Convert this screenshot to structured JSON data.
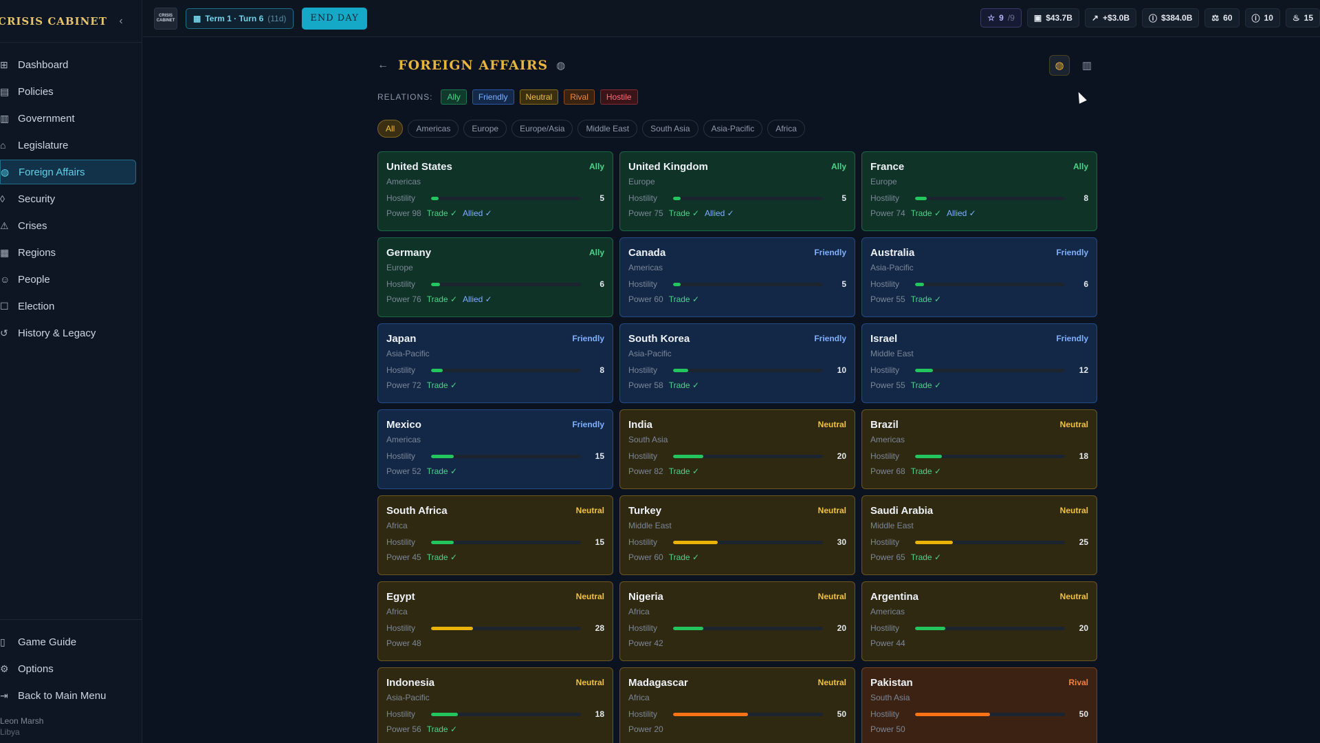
{
  "app": {
    "title": "CRISIS CABINET",
    "logo_text": "CRISIS CABINET"
  },
  "sidebar": {
    "items": [
      {
        "label": "Dashboard",
        "icon": "grid-icon",
        "glyph": "⊞",
        "active": false
      },
      {
        "label": "Policies",
        "icon": "document-icon",
        "glyph": "▤",
        "active": false
      },
      {
        "label": "Government",
        "icon": "building-icon",
        "glyph": "▥",
        "active": false
      },
      {
        "label": "Legislature",
        "icon": "landmark-icon",
        "glyph": "⌂",
        "active": false
      },
      {
        "label": "Foreign Affairs",
        "icon": "globe-icon",
        "glyph": "◍",
        "active": true
      },
      {
        "label": "Security",
        "icon": "shield-icon",
        "glyph": "◊",
        "active": false
      },
      {
        "label": "Crises",
        "icon": "warning-icon",
        "glyph": "⚠",
        "active": false
      },
      {
        "label": "Regions",
        "icon": "map-icon",
        "glyph": "▦",
        "active": false
      },
      {
        "label": "People",
        "icon": "users-icon",
        "glyph": "☺",
        "active": false
      },
      {
        "label": "Election",
        "icon": "ballot-icon",
        "glyph": "☐",
        "active": false
      },
      {
        "label": "History & Legacy",
        "icon": "history-icon",
        "glyph": "↺",
        "active": false
      }
    ],
    "bottom": [
      {
        "label": "Game Guide",
        "icon": "book-icon",
        "glyph": "▯"
      },
      {
        "label": "Options",
        "icon": "gear-icon",
        "glyph": "⚙"
      },
      {
        "label": "Back to Main Menu",
        "icon": "exit-icon",
        "glyph": "⇥"
      }
    ],
    "user": {
      "name": "Leon Marsh",
      "country": "Libya"
    }
  },
  "topbar": {
    "term": "Term 1 · Turn 6",
    "days": "(11d)",
    "end_day": "END DAY",
    "stats": [
      {
        "icon": "star-icon",
        "glyph": "☆",
        "value": "9",
        "extra": "/9",
        "kind": "star"
      },
      {
        "icon": "wallet-icon",
        "glyph": "▣",
        "value": "$43.7B",
        "extra": "",
        "kind": ""
      },
      {
        "icon": "trending-up-icon",
        "glyph": "↗",
        "value": "+$3.0B",
        "extra": "",
        "kind": ""
      },
      {
        "icon": "debt-icon",
        "glyph": "ⓘ",
        "value": "$384.0B",
        "extra": "",
        "kind": ""
      },
      {
        "icon": "scale-icon",
        "glyph": "⚖",
        "value": "60",
        "extra": "",
        "kind": ""
      },
      {
        "icon": "alert-icon",
        "glyph": "ⓘ",
        "value": "10",
        "extra": "",
        "kind": ""
      },
      {
        "icon": "flame-icon",
        "glyph": "♨",
        "value": "15",
        "extra": "",
        "kind": ""
      }
    ]
  },
  "page": {
    "title": "FOREIGN AFFAIRS",
    "relations_label": "RELATIONS:",
    "relations": [
      {
        "label": "Ally",
        "kind": "ally"
      },
      {
        "label": "Friendly",
        "kind": "friendly"
      },
      {
        "label": "Neutral",
        "kind": "neutral"
      },
      {
        "label": "Rival",
        "kind": "rival"
      },
      {
        "label": "Hostile",
        "kind": "hostile"
      }
    ],
    "regions": [
      "All",
      "Americas",
      "Europe",
      "Europe/Asia",
      "Middle East",
      "South Asia",
      "Asia-Pacific",
      "Africa"
    ],
    "active_region": "All",
    "hostility_label": "Hostility",
    "power_prefix": "Power",
    "trade_label": "Trade ✓",
    "allied_label": "Allied ✓"
  },
  "colors": {
    "ally": "#4ad58a",
    "friendly": "#7fb0ff",
    "neutral": "#f2c23d",
    "rival": "#f2833d",
    "bar_low": "#22c55e",
    "bar_mid": "#eab308",
    "bar_high": "#f97316"
  },
  "countries": [
    {
      "name": "United States",
      "relation": "Ally",
      "kind": "ally",
      "region": "Americas",
      "hostility": 5,
      "power": 98,
      "trade": true,
      "allied": true
    },
    {
      "name": "United Kingdom",
      "relation": "Ally",
      "kind": "ally",
      "region": "Europe",
      "hostility": 5,
      "power": 75,
      "trade": true,
      "allied": true
    },
    {
      "name": "France",
      "relation": "Ally",
      "kind": "ally",
      "region": "Europe",
      "hostility": 8,
      "power": 74,
      "trade": true,
      "allied": true
    },
    {
      "name": "Germany",
      "relation": "Ally",
      "kind": "ally",
      "region": "Europe",
      "hostility": 6,
      "power": 76,
      "trade": true,
      "allied": true
    },
    {
      "name": "Canada",
      "relation": "Friendly",
      "kind": "friendly",
      "region": "Americas",
      "hostility": 5,
      "power": 60,
      "trade": true,
      "allied": false
    },
    {
      "name": "Australia",
      "relation": "Friendly",
      "kind": "friendly",
      "region": "Asia-Pacific",
      "hostility": 6,
      "power": 55,
      "trade": true,
      "allied": false
    },
    {
      "name": "Japan",
      "relation": "Friendly",
      "kind": "friendly",
      "region": "Asia-Pacific",
      "hostility": 8,
      "power": 72,
      "trade": true,
      "allied": false
    },
    {
      "name": "South Korea",
      "relation": "Friendly",
      "kind": "friendly",
      "region": "Asia-Pacific",
      "hostility": 10,
      "power": 58,
      "trade": true,
      "allied": false
    },
    {
      "name": "Israel",
      "relation": "Friendly",
      "kind": "friendly",
      "region": "Middle East",
      "hostility": 12,
      "power": 55,
      "trade": true,
      "allied": false
    },
    {
      "name": "Mexico",
      "relation": "Friendly",
      "kind": "friendly",
      "region": "Americas",
      "hostility": 15,
      "power": 52,
      "trade": true,
      "allied": false
    },
    {
      "name": "India",
      "relation": "Neutral",
      "kind": "neutral",
      "region": "South Asia",
      "hostility": 20,
      "power": 82,
      "trade": true,
      "allied": false
    },
    {
      "name": "Brazil",
      "relation": "Neutral",
      "kind": "neutral",
      "region": "Americas",
      "hostility": 18,
      "power": 68,
      "trade": true,
      "allied": false
    },
    {
      "name": "South Africa",
      "relation": "Neutral",
      "kind": "neutral",
      "region": "Africa",
      "hostility": 15,
      "power": 45,
      "trade": true,
      "allied": false
    },
    {
      "name": "Turkey",
      "relation": "Neutral",
      "kind": "neutral",
      "region": "Middle East",
      "hostility": 30,
      "power": 60,
      "trade": true,
      "allied": false
    },
    {
      "name": "Saudi Arabia",
      "relation": "Neutral",
      "kind": "neutral",
      "region": "Middle East",
      "hostility": 25,
      "power": 65,
      "trade": true,
      "allied": false
    },
    {
      "name": "Egypt",
      "relation": "Neutral",
      "kind": "neutral",
      "region": "Africa",
      "hostility": 28,
      "power": 48,
      "trade": false,
      "allied": false
    },
    {
      "name": "Nigeria",
      "relation": "Neutral",
      "kind": "neutral",
      "region": "Africa",
      "hostility": 20,
      "power": 42,
      "trade": false,
      "allied": false
    },
    {
      "name": "Argentina",
      "relation": "Neutral",
      "kind": "neutral",
      "region": "Americas",
      "hostility": 20,
      "power": 44,
      "trade": false,
      "allied": false
    },
    {
      "name": "Indonesia",
      "relation": "Neutral",
      "kind": "neutral",
      "region": "Asia-Pacific",
      "hostility": 18,
      "power": 56,
      "trade": true,
      "allied": false
    },
    {
      "name": "Madagascar",
      "relation": "Neutral",
      "kind": "neutral",
      "region": "Africa",
      "hostility": 50,
      "power": 20,
      "trade": false,
      "allied": false
    },
    {
      "name": "Pakistan",
      "relation": "Rival",
      "kind": "rival",
      "region": "South Asia",
      "hostility": 50,
      "power": 50,
      "trade": false,
      "allied": false
    }
  ]
}
